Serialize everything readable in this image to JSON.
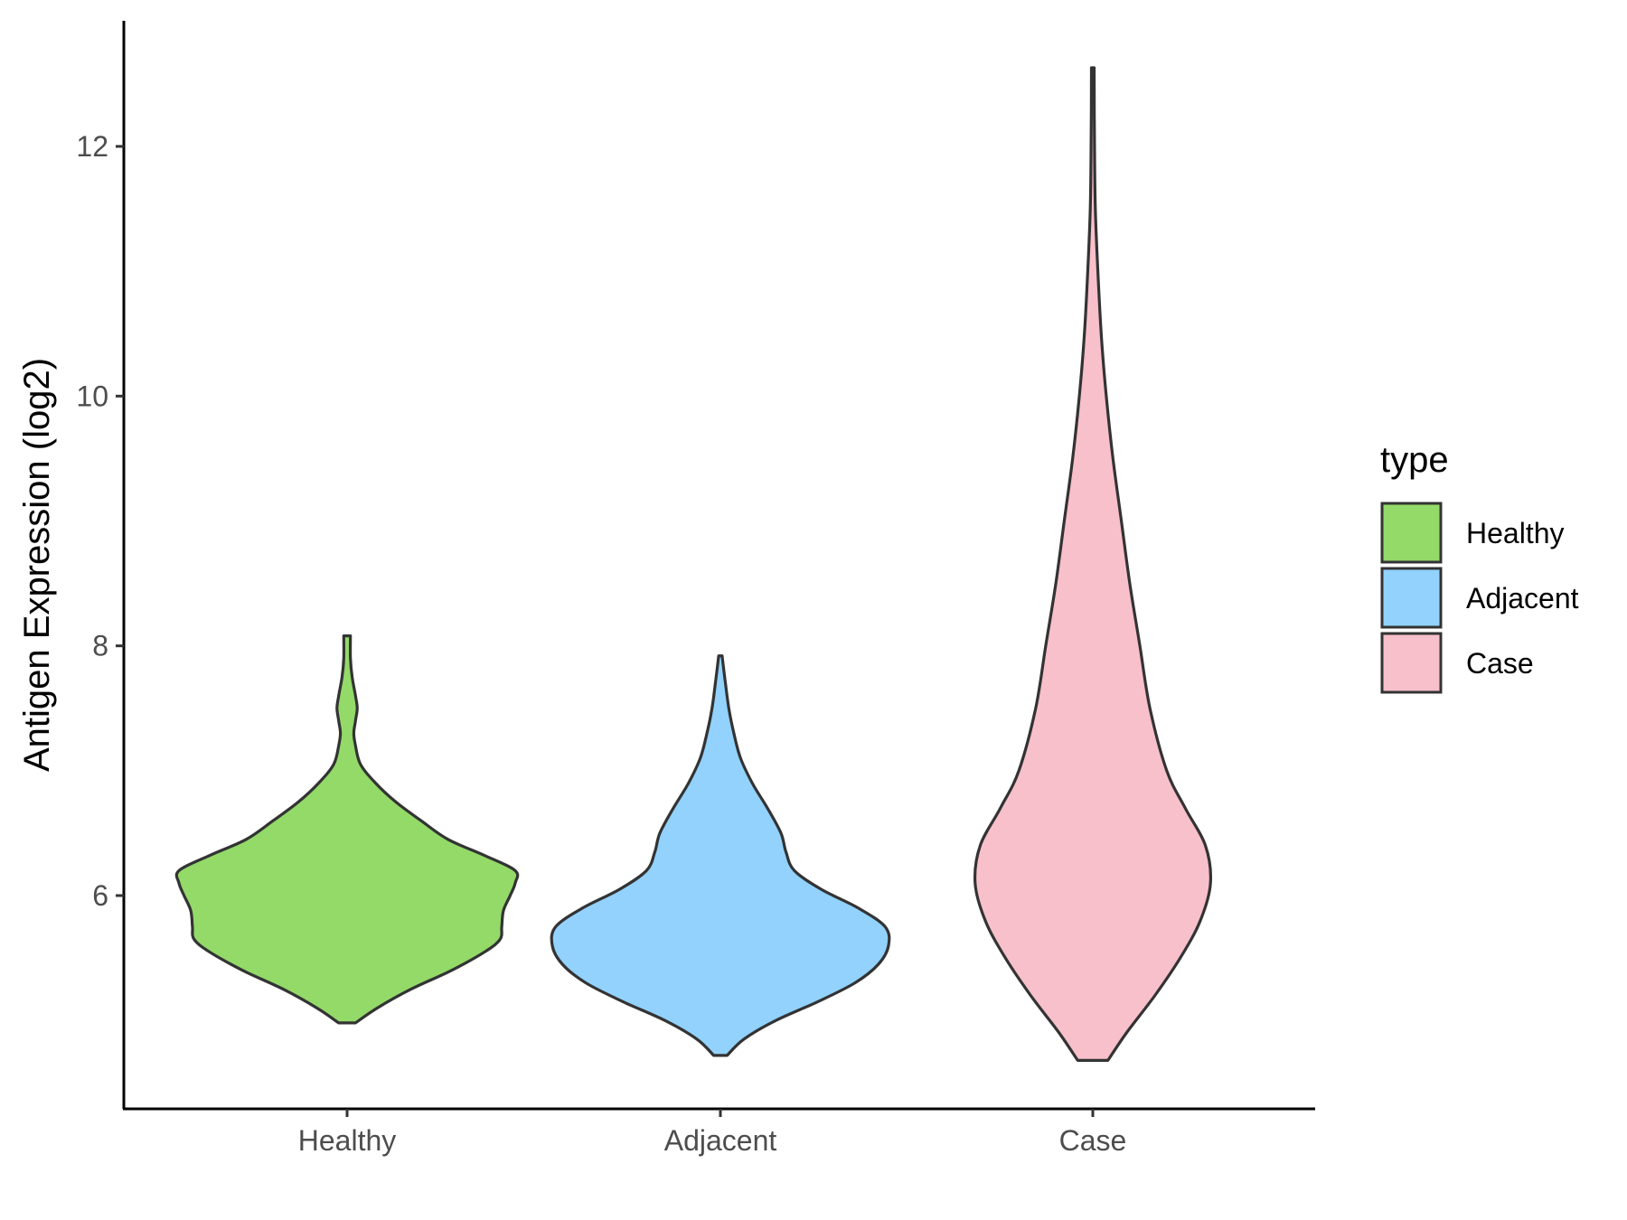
{
  "chart_data": {
    "type": "violin",
    "title": "",
    "xlabel": "",
    "ylabel": "Antigen Expression (log2)",
    "ylim": [
      4.3,
      13.0
    ],
    "y_ticks": [
      6,
      8,
      10,
      12
    ],
    "categories": [
      "Healthy",
      "Adjacent",
      "Case"
    ],
    "grid": false,
    "legend": {
      "title": "type",
      "position": "right",
      "entries": [
        "Healthy",
        "Adjacent",
        "Case"
      ]
    },
    "series": [
      {
        "name": "Healthy",
        "color": "#93da69",
        "min": 4.98,
        "max": 8.08,
        "density": [
          [
            4.98,
            0.05
          ],
          [
            5.1,
            0.18
          ],
          [
            5.25,
            0.38
          ],
          [
            5.4,
            0.62
          ],
          [
            5.55,
            0.82
          ],
          [
            5.65,
            0.91
          ],
          [
            5.75,
            0.92
          ],
          [
            5.88,
            0.93
          ],
          [
            6.0,
            0.97
          ],
          [
            6.1,
            1.0
          ],
          [
            6.2,
            1.0
          ],
          [
            6.32,
            0.82
          ],
          [
            6.45,
            0.6
          ],
          [
            6.6,
            0.44
          ],
          [
            6.75,
            0.29
          ],
          [
            6.9,
            0.17
          ],
          [
            7.05,
            0.08
          ],
          [
            7.2,
            0.05
          ],
          [
            7.3,
            0.04
          ],
          [
            7.4,
            0.05
          ],
          [
            7.5,
            0.06
          ],
          [
            7.6,
            0.05
          ],
          [
            7.75,
            0.03
          ],
          [
            7.9,
            0.02
          ],
          [
            8.08,
            0.02
          ]
        ]
      },
      {
        "name": "Adjacent",
        "color": "#92d2fd",
        "min": 4.72,
        "max": 7.92,
        "density": [
          [
            4.72,
            0.04
          ],
          [
            4.85,
            0.14
          ],
          [
            5.0,
            0.33
          ],
          [
            5.15,
            0.58
          ],
          [
            5.3,
            0.8
          ],
          [
            5.45,
            0.94
          ],
          [
            5.6,
            1.0
          ],
          [
            5.75,
            0.98
          ],
          [
            5.9,
            0.82
          ],
          [
            6.05,
            0.6
          ],
          [
            6.2,
            0.44
          ],
          [
            6.35,
            0.39
          ],
          [
            6.5,
            0.36
          ],
          [
            6.7,
            0.28
          ],
          [
            6.9,
            0.19
          ],
          [
            7.1,
            0.12
          ],
          [
            7.3,
            0.08
          ],
          [
            7.5,
            0.05
          ],
          [
            7.7,
            0.03
          ],
          [
            7.92,
            0.01
          ]
        ]
      },
      {
        "name": "Case",
        "color": "#f8c0cb",
        "min": 4.68,
        "max": 12.63,
        "density": [
          [
            4.68,
            0.09
          ],
          [
            4.9,
            0.2
          ],
          [
            5.2,
            0.37
          ],
          [
            5.5,
            0.52
          ],
          [
            5.8,
            0.64
          ],
          [
            6.1,
            0.7
          ],
          [
            6.4,
            0.67
          ],
          [
            6.7,
            0.55
          ],
          [
            7.0,
            0.44
          ],
          [
            7.5,
            0.34
          ],
          [
            8.0,
            0.28
          ],
          [
            8.5,
            0.22
          ],
          [
            9.0,
            0.17
          ],
          [
            9.5,
            0.12
          ],
          [
            10.0,
            0.08
          ],
          [
            10.5,
            0.05
          ],
          [
            11.0,
            0.03
          ],
          [
            11.5,
            0.015
          ],
          [
            12.0,
            0.01
          ],
          [
            12.63,
            0.008
          ]
        ]
      }
    ]
  }
}
